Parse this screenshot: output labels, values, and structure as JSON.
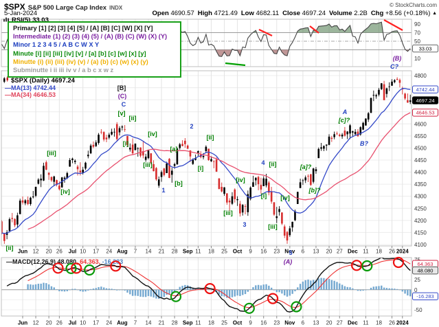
{
  "header": {
    "symbol": "$SPX",
    "name": "S&P 500 Large Cap Index",
    "exchange": "INDX",
    "copyright": "© StockCharts.com",
    "date": "5-Jan-2024",
    "open_label": "Open",
    "open": "4690.57",
    "high_label": "High",
    "high": "4721.49",
    "low_label": "Low",
    "low": "4682.11",
    "close_label": "Close",
    "close": "4697.24",
    "volume_label": "Volume",
    "volume": "2.2B",
    "chg_label": "Chg",
    "chg": "+8.56 (+0.18%)",
    "chg_arrow": "▲"
  },
  "legend_box": {
    "lines": [
      "Primary [1] [2] [3] [4] [5] / [A] [B] [C] [W] [X] [Y]",
      "Intermediate (1) (2) (3) (4) (5) / (A) (B) (C) (W) (X) (Y)",
      "Minor 1 2 3 4 5 / A B C W X Y",
      "Minute [i] [ii] [iii] [iv] [v] / [a] [b] [c] [w] [x] [y]",
      "Minutte (i) (ii) (iii) (iv) (v) / (a) (b) (c) (w) (x) (y)",
      "Subminutte i ii iii iv v / a b c x w z"
    ]
  },
  "rsi_panel": {
    "title": "RSI(5) 33.03",
    "axis_labels": [
      90,
      70,
      50,
      10
    ],
    "overbought": 70,
    "midline": 50,
    "oversold": 30,
    "last_value": 33.03
  },
  "main_panel": {
    "title": "$SPX (Daily) 4697.24",
    "ma13_legend": "—MA(13) 4742.44",
    "ma34_legend": "—MA(34) 4646.53",
    "ma13_value": 4742.44,
    "ma34_value": 4646.53,
    "last_value": 4697.24,
    "axis_labels": [
      4800,
      4750,
      4600,
      4550,
      4500,
      4450,
      4400,
      4350,
      4300,
      4250,
      4200,
      4150,
      4100
    ]
  },
  "macd_panel": {
    "label": "—MACD(12,26,9) ",
    "macd_value": "48.080, ",
    "signal_value": "64.363, ",
    "hist_value": "-16.283",
    "axis_labels": [
      75,
      25,
      0,
      -50
    ]
  },
  "value_boxes": [
    {
      "panel": "rsi",
      "v": 33.03,
      "text": "33.03",
      "style": "plain"
    },
    {
      "panel": "price",
      "v": 4742.44,
      "text": "4742.44",
      "style": "blue"
    },
    {
      "panel": "price",
      "v": 4697.24,
      "text": "4697.24",
      "style": "last"
    },
    {
      "panel": "price",
      "v": 4646.53,
      "text": "4646.53",
      "style": "red"
    },
    {
      "panel": "macd",
      "v": 64.363,
      "text": "64.363",
      "style": "red"
    },
    {
      "panel": "macd",
      "v": 48.08,
      "text": "48.080",
      "style": "gray"
    },
    {
      "panel": "macd",
      "v": -16.283,
      "text": "-16.283",
      "style": "blue"
    }
  ],
  "x_axis": {
    "ticks": [
      [
        8,
        "Jun"
      ],
      [
        13,
        "12"
      ],
      [
        18,
        "20"
      ],
      [
        22,
        "26"
      ],
      [
        27,
        "Jul"
      ],
      [
        31,
        "10"
      ],
      [
        36,
        "17"
      ],
      [
        41,
        "24"
      ],
      [
        46,
        "Aug"
      ],
      [
        51,
        "7"
      ],
      [
        56,
        "14"
      ],
      [
        61,
        "21"
      ],
      [
        66,
        "28"
      ],
      [
        71,
        "Sep"
      ],
      [
        75,
        "11"
      ],
      [
        80,
        "18"
      ],
      [
        85,
        "25"
      ],
      [
        90,
        "Oct"
      ],
      [
        95,
        "9"
      ],
      [
        100,
        "16"
      ],
      [
        105,
        "23"
      ],
      [
        110,
        "Nov"
      ],
      [
        115,
        "6"
      ],
      [
        120,
        "13"
      ],
      [
        125,
        "20"
      ],
      [
        129,
        "27"
      ],
      [
        134,
        "Dec"
      ],
      [
        139,
        "11"
      ],
      [
        144,
        "18"
      ],
      [
        149,
        "26"
      ],
      [
        153,
        "2024"
      ]
    ],
    "bold": [
      "Jun",
      "Jul",
      "Aug",
      "Sep",
      "Oct",
      "Nov",
      "Dec",
      "2024"
    ]
  },
  "annotations": {
    "wave_labels": [
      [
        14,
        364,
        "[ii]",
        "minute"
      ],
      [
        75,
        226,
        "[iii]",
        "minute"
      ],
      [
        95,
        282,
        "[iv]",
        "minute"
      ],
      [
        177,
        131,
        "[B]",
        "primary"
      ],
      [
        178,
        143,
        "(C)",
        "intermediate"
      ],
      [
        180,
        155,
        "C",
        "minor"
      ],
      [
        177,
        168,
        "[v]",
        "minute"
      ],
      [
        193,
        175,
        "[ii]",
        "minute"
      ],
      [
        183,
        212,
        "[i]",
        "minute"
      ],
      [
        222,
        198,
        "[iv]",
        "minute"
      ],
      [
        215,
        243,
        "[iii]",
        "minute"
      ],
      [
        253,
        220,
        "[a]",
        "minute"
      ],
      [
        260,
        270,
        "[b]",
        "minute"
      ],
      [
        238,
        280,
        "1",
        "minor"
      ],
      [
        279,
        187,
        "2",
        "minor"
      ],
      [
        292,
        248,
        "[i]",
        "minute"
      ],
      [
        306,
        203,
        "[ii]",
        "minute"
      ],
      [
        332,
        313,
        "[iii]",
        "minute"
      ],
      [
        350,
        265,
        "[iv]",
        "minute"
      ],
      [
        356,
        330,
        "3",
        "minor"
      ],
      [
        383,
        240,
        "4",
        "minor"
      ],
      [
        397,
        242,
        "[ii]",
        "minute"
      ],
      [
        384,
        288,
        "[i]",
        "minute"
      ],
      [
        415,
        291,
        "[iv]",
        "minute"
      ],
      [
        397,
        333,
        "[iii]",
        "minute"
      ],
      [
        423,
        371,
        "5",
        "minor"
      ],
      [
        419,
        384,
        "(A)",
        "intermediate",
        1
      ],
      [
        445,
        246,
        "[a]?",
        "minute",
        1
      ],
      [
        458,
        280,
        "[b]?",
        "minute",
        1
      ],
      [
        502,
        166,
        "A",
        "minor",
        1
      ],
      [
        501,
        178,
        "[c]?",
        "minute",
        1
      ],
      [
        530,
        212,
        "B?",
        "minor",
        1
      ],
      [
        578,
        88,
        "(B)",
        "intermediate",
        1
      ],
      [
        574,
        100,
        "C?",
        "minor",
        1
      ]
    ],
    "rsi_trendlines": [
      [
        248,
        43,
        261,
        46,
        "red"
      ],
      [
        377,
        43,
        396,
        52,
        "red"
      ],
      [
        451,
        38,
        464,
        48,
        "red"
      ],
      [
        559,
        29,
        586,
        44,
        "red"
      ],
      [
        328,
        92,
        357,
        95,
        "green"
      ]
    ]
  },
  "colors": {
    "up": "#000000",
    "down": "#d62c2c",
    "ma13": "#3449c8",
    "ma34": "#e8506e",
    "rsi_line": "#444444",
    "rsi_over_fill": "rgba(75,120,75,0.55)",
    "rsi_under_fill": "rgba(150,82,82,0.60)",
    "macd_line": "#111111",
    "macd_signal": "#ee3333",
    "macd_hist_fill": "#74a8d0",
    "macd_hist_stroke": "#5590bc",
    "bull_circle": "#0a9a0a",
    "bear_circle": "#ee1111",
    "trend_red": "#ff2222",
    "trend_green": "#00a000",
    "grid": "#e4e4e4",
    "panel_border": "#bfbfbf"
  },
  "chart_data": {
    "type": "candlestick",
    "title": "$SPX (Daily)",
    "last_close": 4697.24,
    "price_axis": {
      "min": 4094,
      "max": 4820,
      "grid_step": 50
    },
    "indicators": {
      "sma": [
        13,
        34
      ],
      "rsi": 5,
      "macd": [
        12,
        26,
        9
      ]
    },
    "pre_closes": [
      4151,
      4155,
      4129,
      4133,
      4137,
      4169,
      4168,
      4136,
      4120,
      4091,
      4061,
      4136,
      4138,
      4119,
      4138,
      4131,
      4124,
      4136,
      4110,
      4159,
      4198,
      4192,
      4193
    ],
    "ohlc": [
      [
        4196,
        4201,
        4142,
        4145
      ],
      [
        4145,
        4148,
        4103,
        4115
      ],
      [
        4140,
        4160,
        4122,
        4151
      ],
      [
        4156,
        4212,
        4150,
        4205
      ],
      [
        4210,
        4231,
        4192,
        4206
      ],
      [
        4206,
        4209,
        4172,
        4180
      ],
      [
        4183,
        4232,
        4171,
        4221
      ],
      [
        4226,
        4290,
        4226,
        4282
      ],
      [
        4283,
        4299,
        4266,
        4274
      ],
      [
        4271,
        4288,
        4263,
        4283
      ],
      [
        4285,
        4299,
        4263,
        4268
      ],
      [
        4268,
        4298,
        4261,
        4294
      ],
      [
        4296,
        4322,
        4291,
        4299
      ],
      [
        4302,
        4340,
        4296,
        4339
      ],
      [
        4352,
        4375,
        4349,
        4369
      ],
      [
        4366,
        4391,
        4338,
        4373
      ],
      [
        4365,
        4439,
        4363,
        4426
      ],
      [
        4441,
        4448,
        4408,
        4410
      ],
      [
        4397,
        4400,
        4368,
        4389
      ],
      [
        4380,
        4382,
        4360,
        4366
      ],
      [
        4360,
        4385,
        4343,
        4382
      ],
      [
        4367,
        4369,
        4341,
        4348
      ],
      [
        4344,
        4362,
        4324,
        4329
      ],
      [
        4337,
        4380,
        4335,
        4378
      ],
      [
        4372,
        4383,
        4356,
        4377
      ],
      [
        4375,
        4402,
        4371,
        4396
      ],
      [
        4423,
        4458,
        4422,
        4450
      ],
      [
        4450,
        4460,
        4437,
        4456
      ],
      [
        4442,
        4453,
        4433,
        4447
      ],
      [
        4423,
        4430,
        4386,
        4412
      ],
      [
        4406,
        4441,
        4386,
        4399
      ],
      [
        4398,
        4422,
        4390,
        4410
      ],
      [
        4415,
        4443,
        4409,
        4439
      ],
      [
        4466,
        4489,
        4457,
        4472
      ],
      [
        4478,
        4517,
        4475,
        4510
      ],
      [
        4513,
        4527,
        4499,
        4505
      ],
      [
        4508,
        4532,
        4504,
        4523
      ],
      [
        4521,
        4562,
        4514,
        4555
      ],
      [
        4567,
        4578,
        4557,
        4566
      ],
      [
        4566,
        4569,
        4527,
        4535
      ],
      [
        4543,
        4555,
        4524,
        4536
      ],
      [
        4543,
        4563,
        4536,
        4555
      ],
      [
        4556,
        4580,
        4552,
        4567
      ],
      [
        4567,
        4582,
        4547,
        4567
      ],
      [
        4599,
        4607,
        4528,
        4537
      ],
      [
        4565,
        4590,
        4552,
        4582
      ],
      [
        4585,
        4594,
        4573,
        4589
      ],
      [
        4578,
        4595,
        4567,
        4577
      ],
      [
        4550,
        4550,
        4505,
        4513
      ],
      [
        4494,
        4519,
        4485,
        4501
      ],
      [
        4514,
        4540,
        4474,
        4478
      ],
      [
        4491,
        4519,
        4491,
        4518
      ],
      [
        4498,
        4503,
        4464,
        4499
      ],
      [
        4502,
        4503,
        4461,
        4468
      ],
      [
        4487,
        4527,
        4457,
        4469
      ],
      [
        4451,
        4476,
        4443,
        4464
      ],
      [
        4458,
        4490,
        4453,
        4490
      ],
      [
        4478,
        4478,
        4432,
        4438
      ],
      [
        4433,
        4449,
        4403,
        4404
      ],
      [
        4417,
        4421,
        4364,
        4370
      ],
      [
        4344,
        4382,
        4335,
        4370
      ],
      [
        4380,
        4407,
        4360,
        4400
      ],
      [
        4415,
        4418,
        4382,
        4388
      ],
      [
        4396,
        4443,
        4396,
        4436
      ],
      [
        4455,
        4458,
        4375,
        4376
      ],
      [
        4389,
        4418,
        4356,
        4406
      ],
      [
        4426,
        4439,
        4414,
        4433
      ],
      [
        4432,
        4500,
        4431,
        4498
      ],
      [
        4500,
        4521,
        4493,
        4515
      ],
      [
        4517,
        4532,
        4507,
        4508
      ],
      [
        4530,
        4541,
        4501,
        4516
      ],
      [
        4510,
        4514,
        4496,
        4497
      ],
      [
        4490,
        4490,
        4442,
        4465
      ],
      [
        4434,
        4457,
        4430,
        4451
      ],
      [
        4451,
        4473,
        4448,
        4457
      ],
      [
        4480,
        4490,
        4467,
        4487
      ],
      [
        4473,
        4487,
        4457,
        4462
      ],
      [
        4462,
        4479,
        4453,
        4467
      ],
      [
        4487,
        4511,
        4478,
        4505
      ],
      [
        4497,
        4497,
        4447,
        4450
      ],
      [
        4445,
        4466,
        4442,
        4454
      ],
      [
        4445,
        4449,
        4416,
        4444
      ],
      [
        4452,
        4461,
        4401,
        4402
      ],
      [
        4374,
        4375,
        4329,
        4330
      ],
      [
        4339,
        4357,
        4316,
        4320
      ],
      [
        4310,
        4338,
        4302,
        4337
      ],
      [
        4312,
        4313,
        4265,
        4274
      ],
      [
        4282,
        4292,
        4238,
        4275
      ],
      [
        4269,
        4317,
        4264,
        4300
      ],
      [
        4328,
        4333,
        4274,
        4288
      ],
      [
        4284,
        4300,
        4260,
        4288
      ],
      [
        4269,
        4281,
        4216,
        4229
      ],
      [
        4233,
        4268,
        4220,
        4264
      ],
      [
        4259,
        4267,
        4225,
        4258
      ],
      [
        4234,
        4324,
        4219,
        4309
      ],
      [
        4289,
        4341,
        4283,
        4336
      ],
      [
        4339,
        4385,
        4339,
        4358
      ],
      [
        4366,
        4378,
        4345,
        4377
      ],
      [
        4380,
        4385,
        4325,
        4350
      ],
      [
        4347,
        4377,
        4311,
        4328
      ],
      [
        4342,
        4383,
        4342,
        4374
      ],
      [
        4345,
        4393,
        4337,
        4373
      ],
      [
        4357,
        4364,
        4304,
        4315
      ],
      [
        4321,
        4339,
        4269,
        4278
      ],
      [
        4275,
        4276,
        4219,
        4224
      ],
      [
        4210,
        4256,
        4189,
        4217
      ],
      [
        4235,
        4259,
        4220,
        4247
      ],
      [
        4233,
        4233,
        4181,
        4187
      ],
      [
        4175,
        4183,
        4127,
        4137
      ],
      [
        4152,
        4156,
        4103,
        4117
      ],
      [
        4139,
        4177,
        4132,
        4167
      ],
      [
        4171,
        4195,
        4153,
        4194
      ],
      [
        4201,
        4245,
        4197,
        4238
      ],
      [
        4268,
        4319,
        4268,
        4318
      ],
      [
        4334,
        4373,
        4334,
        4358
      ],
      [
        4364,
        4372,
        4347,
        4366
      ],
      [
        4366,
        4386,
        4355,
        4378
      ],
      [
        4384,
        4391,
        4359,
        4383
      ],
      [
        4391,
        4393,
        4343,
        4347
      ],
      [
        4360,
        4418,
        4353,
        4415
      ],
      [
        4404,
        4421,
        4393,
        4412
      ],
      [
        4458,
        4502,
        4458,
        4496
      ],
      [
        4497,
        4521,
        4488,
        4503
      ],
      [
        4497,
        4511,
        4487,
        4508
      ],
      [
        4510,
        4515,
        4489,
        4514
      ],
      [
        4513,
        4557,
        4511,
        4547
      ],
      [
        4542,
        4550,
        4525,
        4538
      ],
      [
        4545,
        4568,
        4536,
        4557
      ],
      [
        4560,
        4568,
        4553,
        4559
      ],
      [
        4555,
        4560,
        4546,
        4550
      ],
      [
        4548,
        4562,
        4538,
        4555
      ],
      [
        4572,
        4587,
        4547,
        4551
      ],
      [
        4557,
        4570,
        4537,
        4568
      ],
      [
        4560,
        4599,
        4537,
        4594
      ],
      [
        4564,
        4572,
        4546,
        4569
      ],
      [
        4557,
        4578,
        4551,
        4567
      ],
      [
        4568,
        4578,
        4546,
        4549
      ],
      [
        4556,
        4590,
        4551,
        4586
      ],
      [
        4576,
        4609,
        4574,
        4604
      ],
      [
        4593,
        4623,
        4593,
        4622
      ],
      [
        4618,
        4649,
        4608,
        4644
      ],
      [
        4646,
        4709,
        4644,
        4707
      ],
      [
        4717,
        4738,
        4694,
        4720
      ],
      [
        4714,
        4725,
        4704,
        4719
      ],
      [
        4721,
        4749,
        4714,
        4741
      ],
      [
        4744,
        4769,
        4740,
        4768
      ],
      [
        4764,
        4778,
        4698,
        4698
      ],
      [
        4724,
        4750,
        4709,
        4747
      ],
      [
        4753,
        4772,
        4736,
        4755
      ],
      [
        4758,
        4785,
        4758,
        4775
      ],
      [
        4773,
        4785,
        4768,
        4781
      ],
      [
        4786,
        4793,
        4780,
        4783
      ],
      [
        4782,
        4788,
        4751,
        4770
      ],
      [
        4745,
        4754,
        4722,
        4743
      ],
      [
        4725,
        4729,
        4699,
        4705
      ],
      [
        4698,
        4726,
        4687,
        4688
      ],
      [
        4691,
        4721,
        4682,
        4697
      ]
    ]
  }
}
